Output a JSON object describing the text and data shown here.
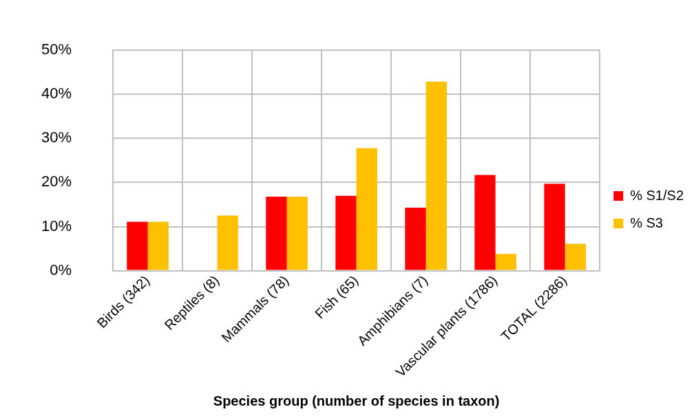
{
  "chart_data": {
    "type": "bar",
    "xlabel": "Species group (number of species in taxon)",
    "categories": [
      "Birds (342)",
      "Reptiles (8)",
      "Mammals (78)",
      "Fish (65)",
      "Amphibians (7)",
      "Vascular plants (1786)",
      "TOTAL (2286)"
    ],
    "series": [
      {
        "name": "% S1/S2",
        "color": "#ff0000",
        "values": [
          11.1,
          0,
          16.8,
          17.0,
          14.3,
          21.7,
          19.7
        ]
      },
      {
        "name": "% S3",
        "color": "#ffc000",
        "values": [
          11.1,
          12.5,
          16.8,
          27.8,
          42.9,
          3.8,
          6.1
        ]
      }
    ],
    "ylim": [
      0,
      50
    ],
    "yticks": [
      {
        "value": 0,
        "label": "0%"
      },
      {
        "value": 10,
        "label": "10%"
      },
      {
        "value": 20,
        "label": "20%"
      },
      {
        "value": 30,
        "label": "30%"
      },
      {
        "value": 40,
        "label": "40%"
      },
      {
        "value": 50,
        "label": "50%"
      }
    ],
    "grid": true,
    "legend": "right"
  }
}
